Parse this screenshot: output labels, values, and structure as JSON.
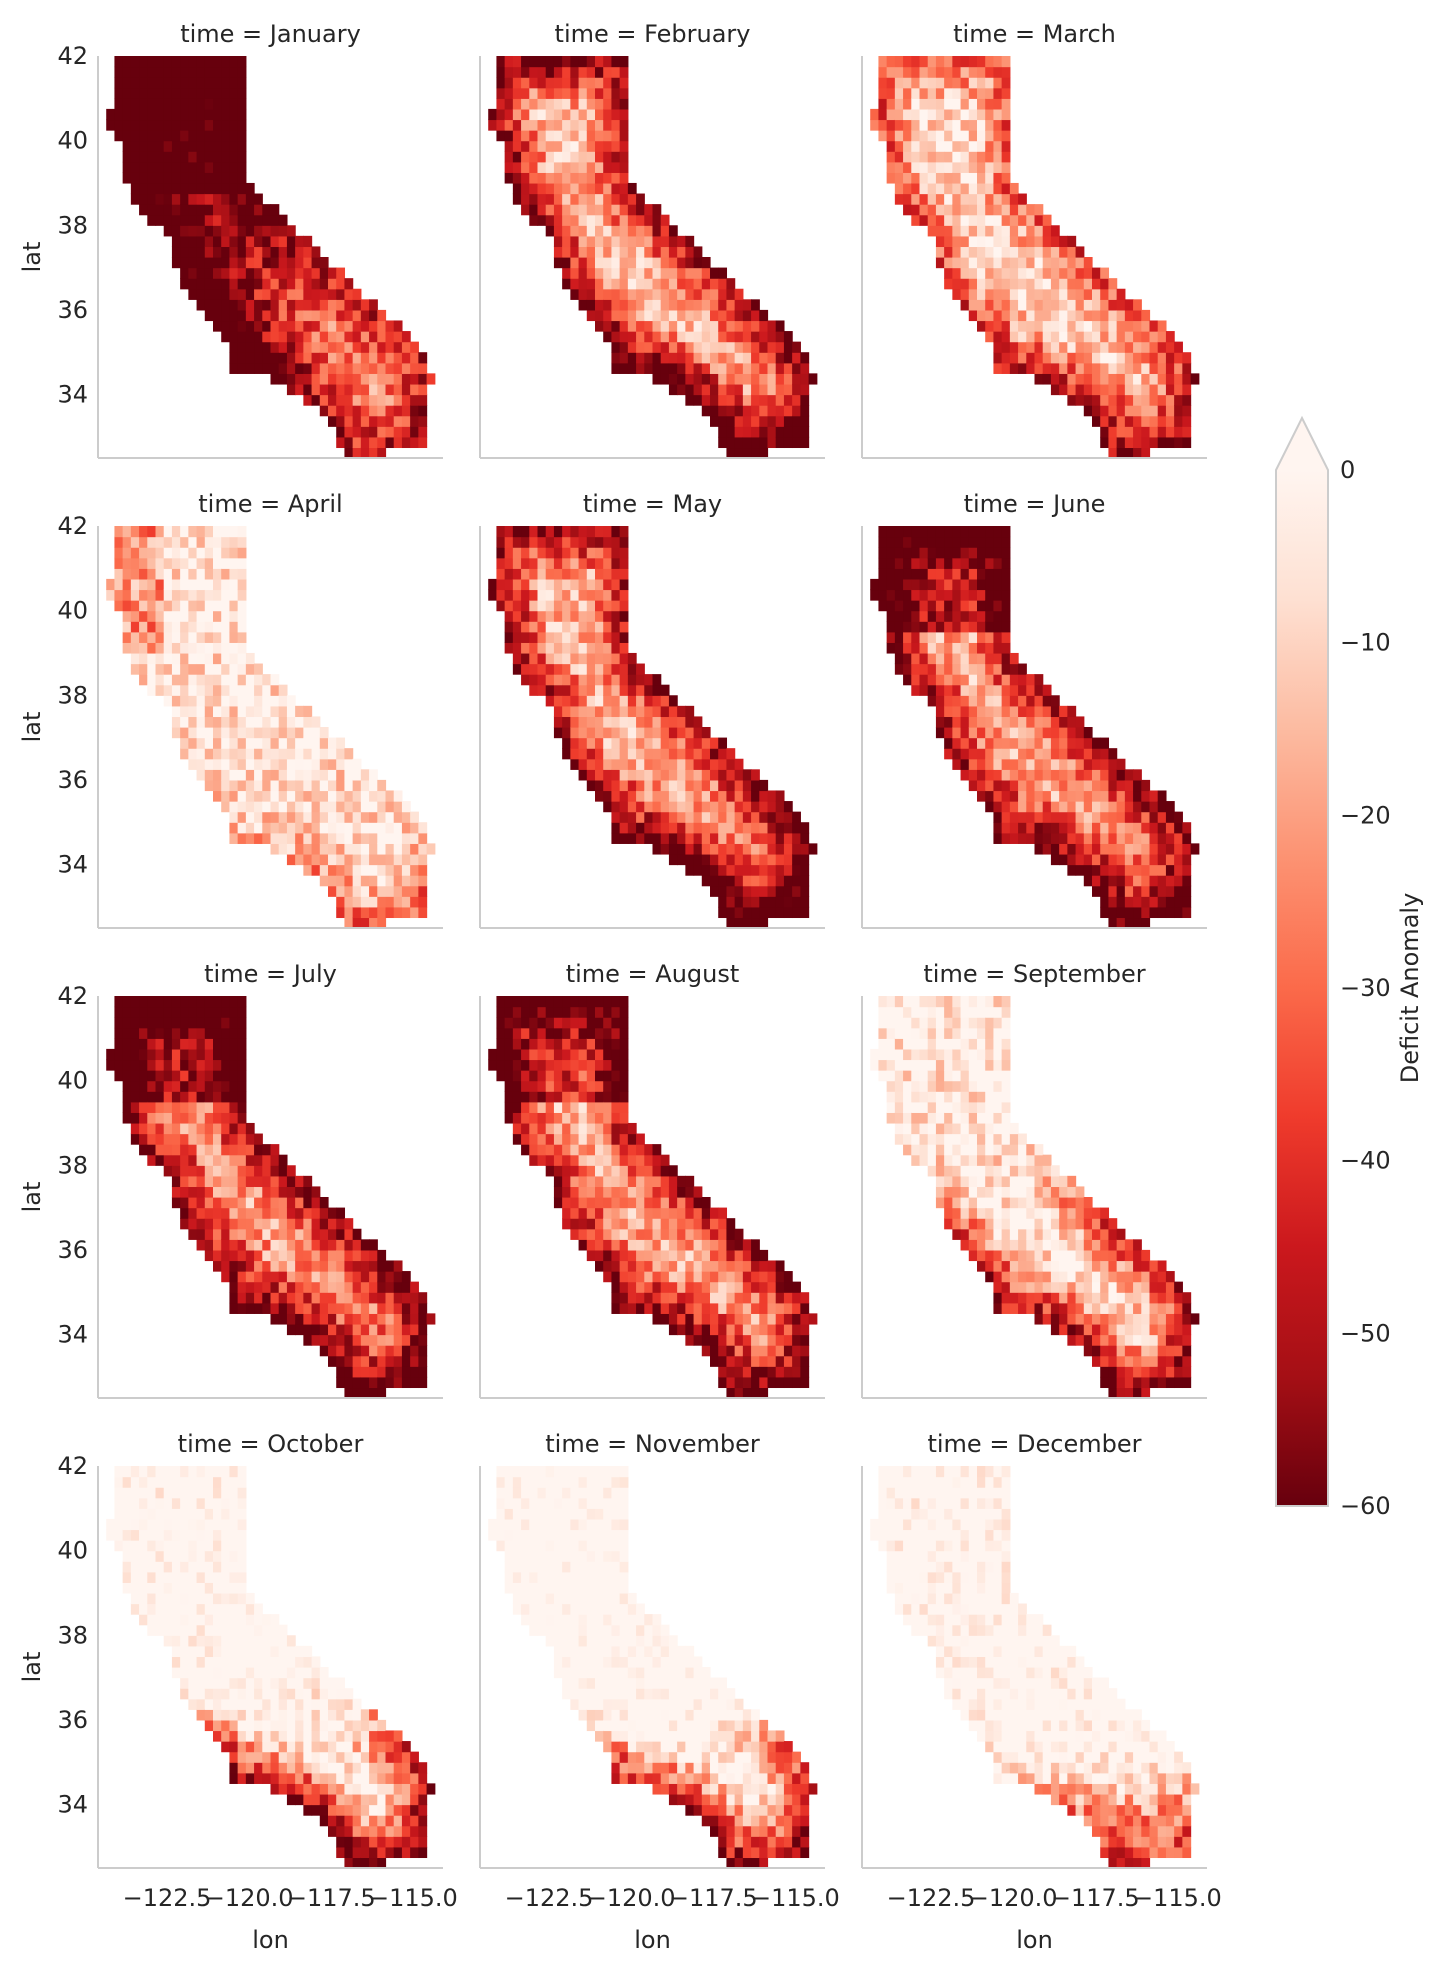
{
  "chart_data": {
    "type": "heatmap",
    "facet_prefix": "time = ",
    "panels": [
      "January",
      "February",
      "March",
      "April",
      "May",
      "June",
      "July",
      "August",
      "September",
      "October",
      "November",
      "December"
    ],
    "xlabel": "lon",
    "ylabel": "lat",
    "xlim": [
      -124.6,
      -114.1
    ],
    "ylim": [
      32.5,
      42.0
    ],
    "xticks": [
      -122.5,
      -120.0,
      -117.5,
      -115.0
    ],
    "xtick_labels": [
      "−122.5",
      "−120.0",
      "−117.5",
      "−115.0"
    ],
    "yticks": [
      34,
      36,
      38,
      40,
      42
    ],
    "ytick_labels": [
      "34",
      "36",
      "38",
      "40",
      "42"
    ],
    "colorbar": {
      "label": "Deficit Anomaly",
      "vmin": -60,
      "vmax": 0,
      "extend": "max",
      "ticks": [
        0,
        -10,
        -20,
        -30,
        -40,
        -50,
        -60
      ],
      "tick_labels": [
        "0",
        "−10",
        "−20",
        "−30",
        "−40",
        "−50",
        "−60"
      ],
      "cmap": "Reds_r",
      "colors": [
        "#67000d",
        "#a50f15",
        "#cb181d",
        "#ef3b2c",
        "#fb6a4a",
        "#fc9272",
        "#fcbba1",
        "#fee0d2",
        "#fff5f0"
      ]
    },
    "grid": false
  }
}
